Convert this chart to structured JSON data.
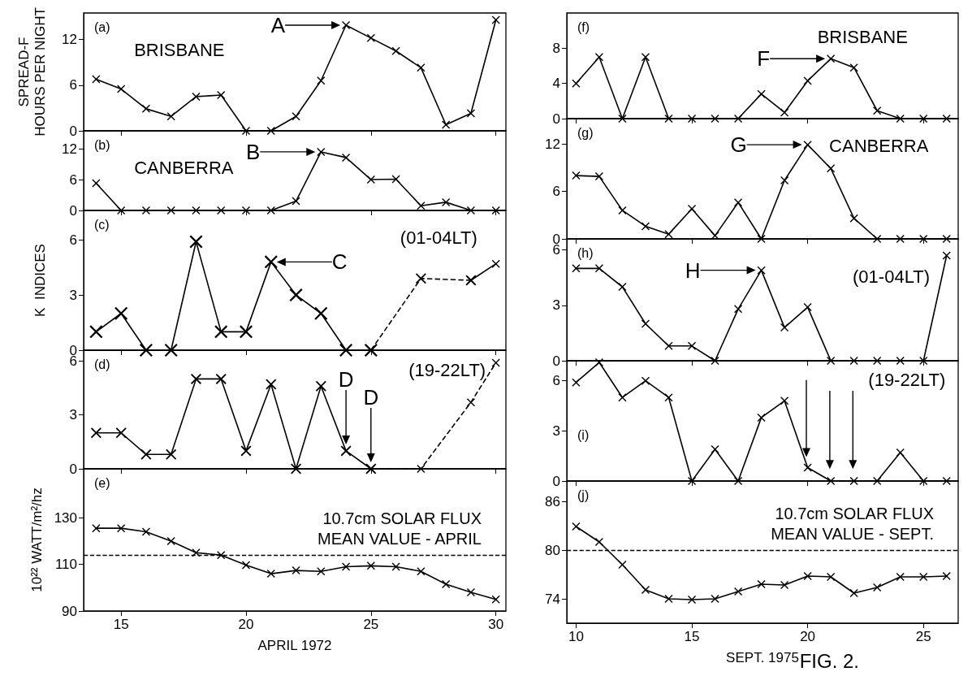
{
  "chart_data": [
    {
      "type": "line",
      "title": "(a)",
      "subtitle": "BRISBANE",
      "ylabel": "SPREAD-F\nHOURS PER NIGHT",
      "marker": "cross",
      "tick_labels": "y",
      "xlim": [
        13.5,
        30.4
      ],
      "xticks": [
        15,
        20,
        25,
        30
      ],
      "ylim": [
        0,
        15.5
      ],
      "yticks": [
        0,
        6,
        12
      ],
      "x": [
        14,
        15,
        16,
        17,
        18,
        19,
        20,
        21,
        22,
        23,
        24,
        25,
        26,
        27,
        28,
        29,
        30
      ],
      "series": [
        {
          "color": "#000000",
          "line_style": "solid",
          "values": [
            6.8,
            5.5,
            2.9,
            1.9,
            4.5,
            4.7,
            0,
            0,
            1.9,
            6.6,
            13.9,
            12.2,
            10.5,
            8.3,
            0.8,
            2.3,
            14.6
          ]
        }
      ],
      "annotations": [
        {
          "text": "A",
          "x": 24,
          "y": 13.9
        }
      ]
    },
    {
      "type": "line",
      "title": "(b)",
      "subtitle": "CANBERRA",
      "marker": "cross",
      "tick_labels": "y",
      "xlim": [
        13.5,
        30.4
      ],
      "xticks": [
        15,
        20,
        25,
        30
      ],
      "ylim": [
        0,
        15.5
      ],
      "yticks": [
        0,
        6,
        12
      ],
      "x": [
        14,
        15,
        16,
        17,
        18,
        19,
        20,
        21,
        22,
        23,
        24,
        25,
        26,
        27,
        28,
        29,
        30
      ],
      "series": [
        {
          "color": "#000000",
          "line_style": "solid",
          "values": [
            5.3,
            0,
            0,
            0,
            0,
            0,
            0,
            0,
            1.8,
            11.4,
            10.3,
            6,
            6.1,
            0.9,
            1.6,
            0,
            0
          ]
        }
      ],
      "annotations": [
        {
          "text": "B",
          "x": 23,
          "y": 11.4
        }
      ]
    },
    {
      "type": "line",
      "title": "(c)",
      "subtitle": "(01-04LT)",
      "ylabel": "K  INDICES",
      "marker": "cross",
      "tick_labels": "y",
      "xlim": [
        13.5,
        30.4
      ],
      "xticks": [
        15,
        20,
        25,
        30
      ],
      "ylim": [
        0,
        7.6
      ],
      "yticks": [
        0,
        3,
        6
      ],
      "series": [
        {
          "color": "#000000",
          "line_style": "solid",
          "x": [
            14,
            15,
            16,
            17,
            18,
            19,
            20,
            21,
            22,
            23,
            24,
            25
          ],
          "values": [
            1,
            2,
            0,
            0,
            5.9,
            1,
            1,
            4.8,
            3,
            2,
            0,
            0
          ]
        },
        {
          "color": "#000000",
          "line_style": "dashed",
          "x": [
            25,
            27,
            29
          ],
          "values": [
            0,
            3.9,
            3.8
          ]
        },
        {
          "color": "#000000",
          "line_style": "solid",
          "x": [
            29,
            30
          ],
          "values": [
            3.8,
            4.7
          ]
        }
      ],
      "annotations": [
        {
          "text": "C",
          "x": 21,
          "y": 4.8
        }
      ]
    },
    {
      "type": "line",
      "title": "(d)",
      "subtitle": "(19-22LT)",
      "marker": "cross",
      "tick_labels": "y",
      "xlim": [
        13.5,
        30.4
      ],
      "xticks": [
        15,
        20,
        25,
        30
      ],
      "ylim": [
        0,
        6.6
      ],
      "yticks": [
        0,
        3,
        6
      ],
      "series": [
        {
          "color": "#000000",
          "line_style": "solid",
          "x": [
            14,
            15,
            16,
            17,
            18,
            19,
            20,
            21,
            22,
            23,
            24,
            25
          ],
          "values": [
            2,
            2,
            0.8,
            0.8,
            5,
            5,
            1,
            4.7,
            0,
            4.6,
            1,
            0
          ]
        },
        {
          "color": "#000000",
          "line_style": "dashed",
          "x": [
            25,
            27,
            29,
            30
          ],
          "values": [
            0,
            0,
            3.7,
            5.9
          ]
        }
      ],
      "annotations": [
        {
          "text": "D",
          "x": 24,
          "y": 1
        },
        {
          "text": "D",
          "x": 25,
          "y": 0
        }
      ]
    },
    {
      "type": "line",
      "title": "(e)",
      "xlabel": "APRIL 1972",
      "ylabel": "10²² WATT/m²/hz",
      "marker": "cross",
      "xlim": [
        13.5,
        30.4
      ],
      "xticks": [
        15,
        20,
        25,
        30
      ],
      "ylim": [
        90,
        151
      ],
      "yticks": [
        90,
        110,
        130
      ],
      "x": [
        14,
        15,
        16,
        17,
        18,
        19,
        20,
        21,
        22,
        23,
        24,
        25,
        26,
        27,
        28,
        29,
        30
      ],
      "series": [
        {
          "color": "#000000",
          "line_style": "solid",
          "values": [
            125.5,
            125.5,
            124,
            120,
            115,
            114,
            109.7,
            106,
            107.4,
            107,
            109,
            109.4,
            109,
            107,
            101.5,
            98,
            95
          ]
        }
      ],
      "ref_lines": [
        {
          "axis": "y",
          "value": 114,
          "label": "10.7cm SOLAR FLUX\nMEAN VALUE - APRIL",
          "line_style": "dashed",
          "color": "#000000"
        }
      ]
    },
    {
      "type": "line",
      "title": "(f)",
      "subtitle": "BRISBANE",
      "marker": "cross",
      "tick_labels": "y",
      "xlim": [
        9.6,
        26.5
      ],
      "xticks": [
        10,
        15,
        20,
        25
      ],
      "ylim": [
        0,
        12
      ],
      "yticks": [
        0,
        4,
        8
      ],
      "x": [
        10,
        11,
        12,
        13,
        14,
        15,
        16,
        17,
        18,
        19,
        20,
        21,
        22,
        23,
        24,
        25,
        26
      ],
      "series": [
        {
          "color": "#000000",
          "line_style": "solid",
          "values": [
            4,
            7,
            0,
            7,
            0,
            0,
            0,
            0,
            2.8,
            0.7,
            4.3,
            6.8,
            5.8,
            0.9,
            0,
            0,
            0
          ]
        }
      ],
      "annotations": [
        {
          "text": "F",
          "x": 21,
          "y": 6.8
        }
      ]
    },
    {
      "type": "line",
      "title": "(g)",
      "subtitle": "CANBERRA",
      "marker": "cross",
      "tick_labels": "y",
      "xlim": [
        9.6,
        26.5
      ],
      "xticks": [
        10,
        15,
        20,
        25
      ],
      "ylim": [
        0,
        15.2
      ],
      "yticks": [
        0,
        6,
        12
      ],
      "x": [
        10,
        11,
        12,
        13,
        14,
        15,
        16,
        17,
        18,
        19,
        20,
        21,
        22,
        23,
        24,
        25,
        26
      ],
      "series": [
        {
          "color": "#000000",
          "line_style": "solid",
          "values": [
            8,
            7.9,
            3.6,
            1.6,
            0.6,
            3.8,
            0.4,
            4.6,
            0,
            7.4,
            11.9,
            8.9,
            2.6,
            0,
            0,
            0,
            0
          ]
        }
      ],
      "annotations": [
        {
          "text": "G",
          "x": 20,
          "y": 11.9
        }
      ]
    },
    {
      "type": "line",
      "title": "(h)",
      "subtitle": "(01-04LT)",
      "marker": "cross",
      "tick_labels": "y",
      "xlim": [
        9.6,
        26.5
      ],
      "xticks": [
        10,
        15,
        20,
        25
      ],
      "ylim": [
        0,
        6.6
      ],
      "yticks": [
        0,
        3,
        6
      ],
      "x": [
        10,
        11,
        12,
        13,
        14,
        15,
        16,
        17,
        18,
        19,
        20,
        21,
        22,
        23,
        24,
        25,
        26
      ],
      "series": [
        {
          "color": "#000000",
          "line_style": "solid",
          "values": [
            5,
            5,
            4,
            2,
            0.8,
            0.8,
            0,
            2.8,
            4.9,
            1.8,
            2.9,
            0,
            0,
            0,
            0,
            0,
            5.7
          ]
        }
      ],
      "annotations": [
        {
          "text": "H",
          "x": 18,
          "y": 4.9
        }
      ]
    },
    {
      "type": "line",
      "title": "(i)",
      "subtitle": "(19-22LT)",
      "marker": "cross",
      "tick_labels": "y",
      "xlim": [
        9.6,
        26.5
      ],
      "xticks": [
        10,
        15,
        20,
        25
      ],
      "ylim": [
        0,
        7.2
      ],
      "yticks": [
        0,
        3,
        6
      ],
      "x": [
        10,
        11,
        12,
        13,
        14,
        15,
        16,
        17,
        18,
        19,
        20,
        21,
        22,
        23,
        24,
        25,
        26
      ],
      "series": [
        {
          "color": "#000000",
          "line_style": "solid",
          "values": [
            5.9,
            7.1,
            5,
            6,
            5,
            0,
            1.9,
            0,
            3.8,
            4.8,
            0.8,
            0,
            0,
            0,
            1.7,
            0,
            0
          ]
        }
      ]
    },
    {
      "type": "line",
      "title": "(j)",
      "xlabel": "SEPT. 1975",
      "marker": "cross",
      "xlim": [
        9.6,
        26.5
      ],
      "xticks": [
        10,
        15,
        20,
        25
      ],
      "ylim": [
        71,
        88.5
      ],
      "yticks": [
        74,
        80,
        86
      ],
      "x": [
        10,
        11,
        12,
        13,
        14,
        15,
        16,
        17,
        18,
        19,
        20,
        21,
        22,
        23,
        24,
        25,
        26
      ],
      "series": [
        {
          "color": "#000000",
          "line_style": "solid",
          "values": [
            82.9,
            81,
            78.2,
            75.1,
            74,
            73.9,
            74,
            74.9,
            75.8,
            75.7,
            76.8,
            76.7,
            74.7,
            75.4,
            76.7,
            76.7,
            76.8
          ]
        }
      ],
      "ref_lines": [
        {
          "axis": "y",
          "value": 80,
          "label": "10.7cm SOLAR FLUX\nMEAN VALUE - SEPT.",
          "line_style": "dashed",
          "color": "#000000"
        }
      ],
      "annotations": [
        "FIG. 2."
      ]
    }
  ]
}
